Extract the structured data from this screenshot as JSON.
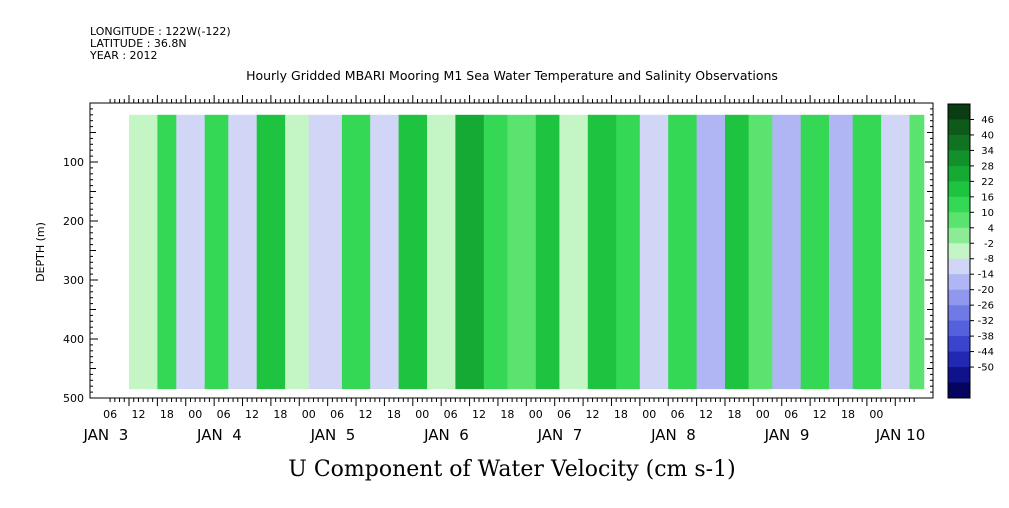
{
  "header": {
    "longitude": "LONGITUDE : 122W(-122)",
    "latitude": "LATITUDE : 36.8N",
    "year": "YEAR : 2012"
  },
  "chart_data": {
    "type": "heatmap",
    "title": "Hourly Gridded MBARI Mooring M1 Sea Water Temperature and Salinity Observations",
    "xlabel": "U Component of Water Velocity (cm s-1)",
    "ylabel": "DEPTH (m)",
    "ylim": [
      0,
      500
    ],
    "y_inverted": true,
    "y_ticks": [
      100,
      200,
      300,
      400,
      500
    ],
    "x_range_hours": [
      0,
      168
    ],
    "x_hour_ticks": [
      "06",
      "12",
      "18",
      "00",
      "06",
      "12",
      "18",
      "00",
      "06",
      "12",
      "18",
      "00",
      "06",
      "12",
      "18",
      "00",
      "06",
      "12",
      "18",
      "00",
      "06",
      "12",
      "18",
      "00",
      "06",
      "12",
      "18",
      "00"
    ],
    "x_day_labels": [
      "JAN  3",
      "JAN  4",
      "JAN  5",
      "JAN  6",
      "JAN  7",
      "JAN  8",
      "JAN  9",
      "JAN 10"
    ],
    "colorbar_levels": [
      46,
      40,
      34,
      28,
      22,
      16,
      10,
      4,
      -2,
      -8,
      -14,
      -20,
      -26,
      -32,
      -38,
      -44,
      -50
    ],
    "colorbar_colors": [
      "#0a3d12",
      "#0d5a1a",
      "#107322",
      "#12902b",
      "#14aa34",
      "#1ec43f",
      "#35d855",
      "#5be370",
      "#8cec95",
      "#c4f5c5",
      "#d2d6f6",
      "#b0b6f3",
      "#8f98ee",
      "#6f7ae6",
      "#5460dc",
      "#3a44cc",
      "#2227b4",
      "#10128c",
      "#05055f"
    ],
    "band_values": [
      {
        "hour": 0,
        "value": -8
      },
      {
        "hour": 6,
        "value": 10
      },
      {
        "hour": 10,
        "value": -10
      },
      {
        "hour": 16,
        "value": 14
      },
      {
        "hour": 21,
        "value": -14
      },
      {
        "hour": 27,
        "value": 16
      },
      {
        "hour": 33,
        "value": -6
      },
      {
        "hour": 38,
        "value": -14
      },
      {
        "hour": 45,
        "value": 12
      },
      {
        "hour": 51,
        "value": -10
      },
      {
        "hour": 57,
        "value": 18
      },
      {
        "hour": 63,
        "value": -8
      },
      {
        "hour": 69,
        "value": 22
      },
      {
        "hour": 75,
        "value": 14
      },
      {
        "hour": 80,
        "value": 8
      },
      {
        "hour": 86,
        "value": 20
      },
      {
        "hour": 91,
        "value": -4
      },
      {
        "hour": 97,
        "value": 16
      },
      {
        "hour": 103,
        "value": 10
      },
      {
        "hour": 108,
        "value": -12
      },
      {
        "hour": 114,
        "value": 14
      },
      {
        "hour": 120,
        "value": -16
      },
      {
        "hour": 126,
        "value": 18
      },
      {
        "hour": 131,
        "value": 6
      },
      {
        "hour": 136,
        "value": -18
      },
      {
        "hour": 142,
        "value": 12
      },
      {
        "hour": 148,
        "value": -20
      },
      {
        "hour": 153,
        "value": 10
      },
      {
        "hour": 159,
        "value": -14
      },
      {
        "hour": 165,
        "value": 8
      }
    ]
  }
}
